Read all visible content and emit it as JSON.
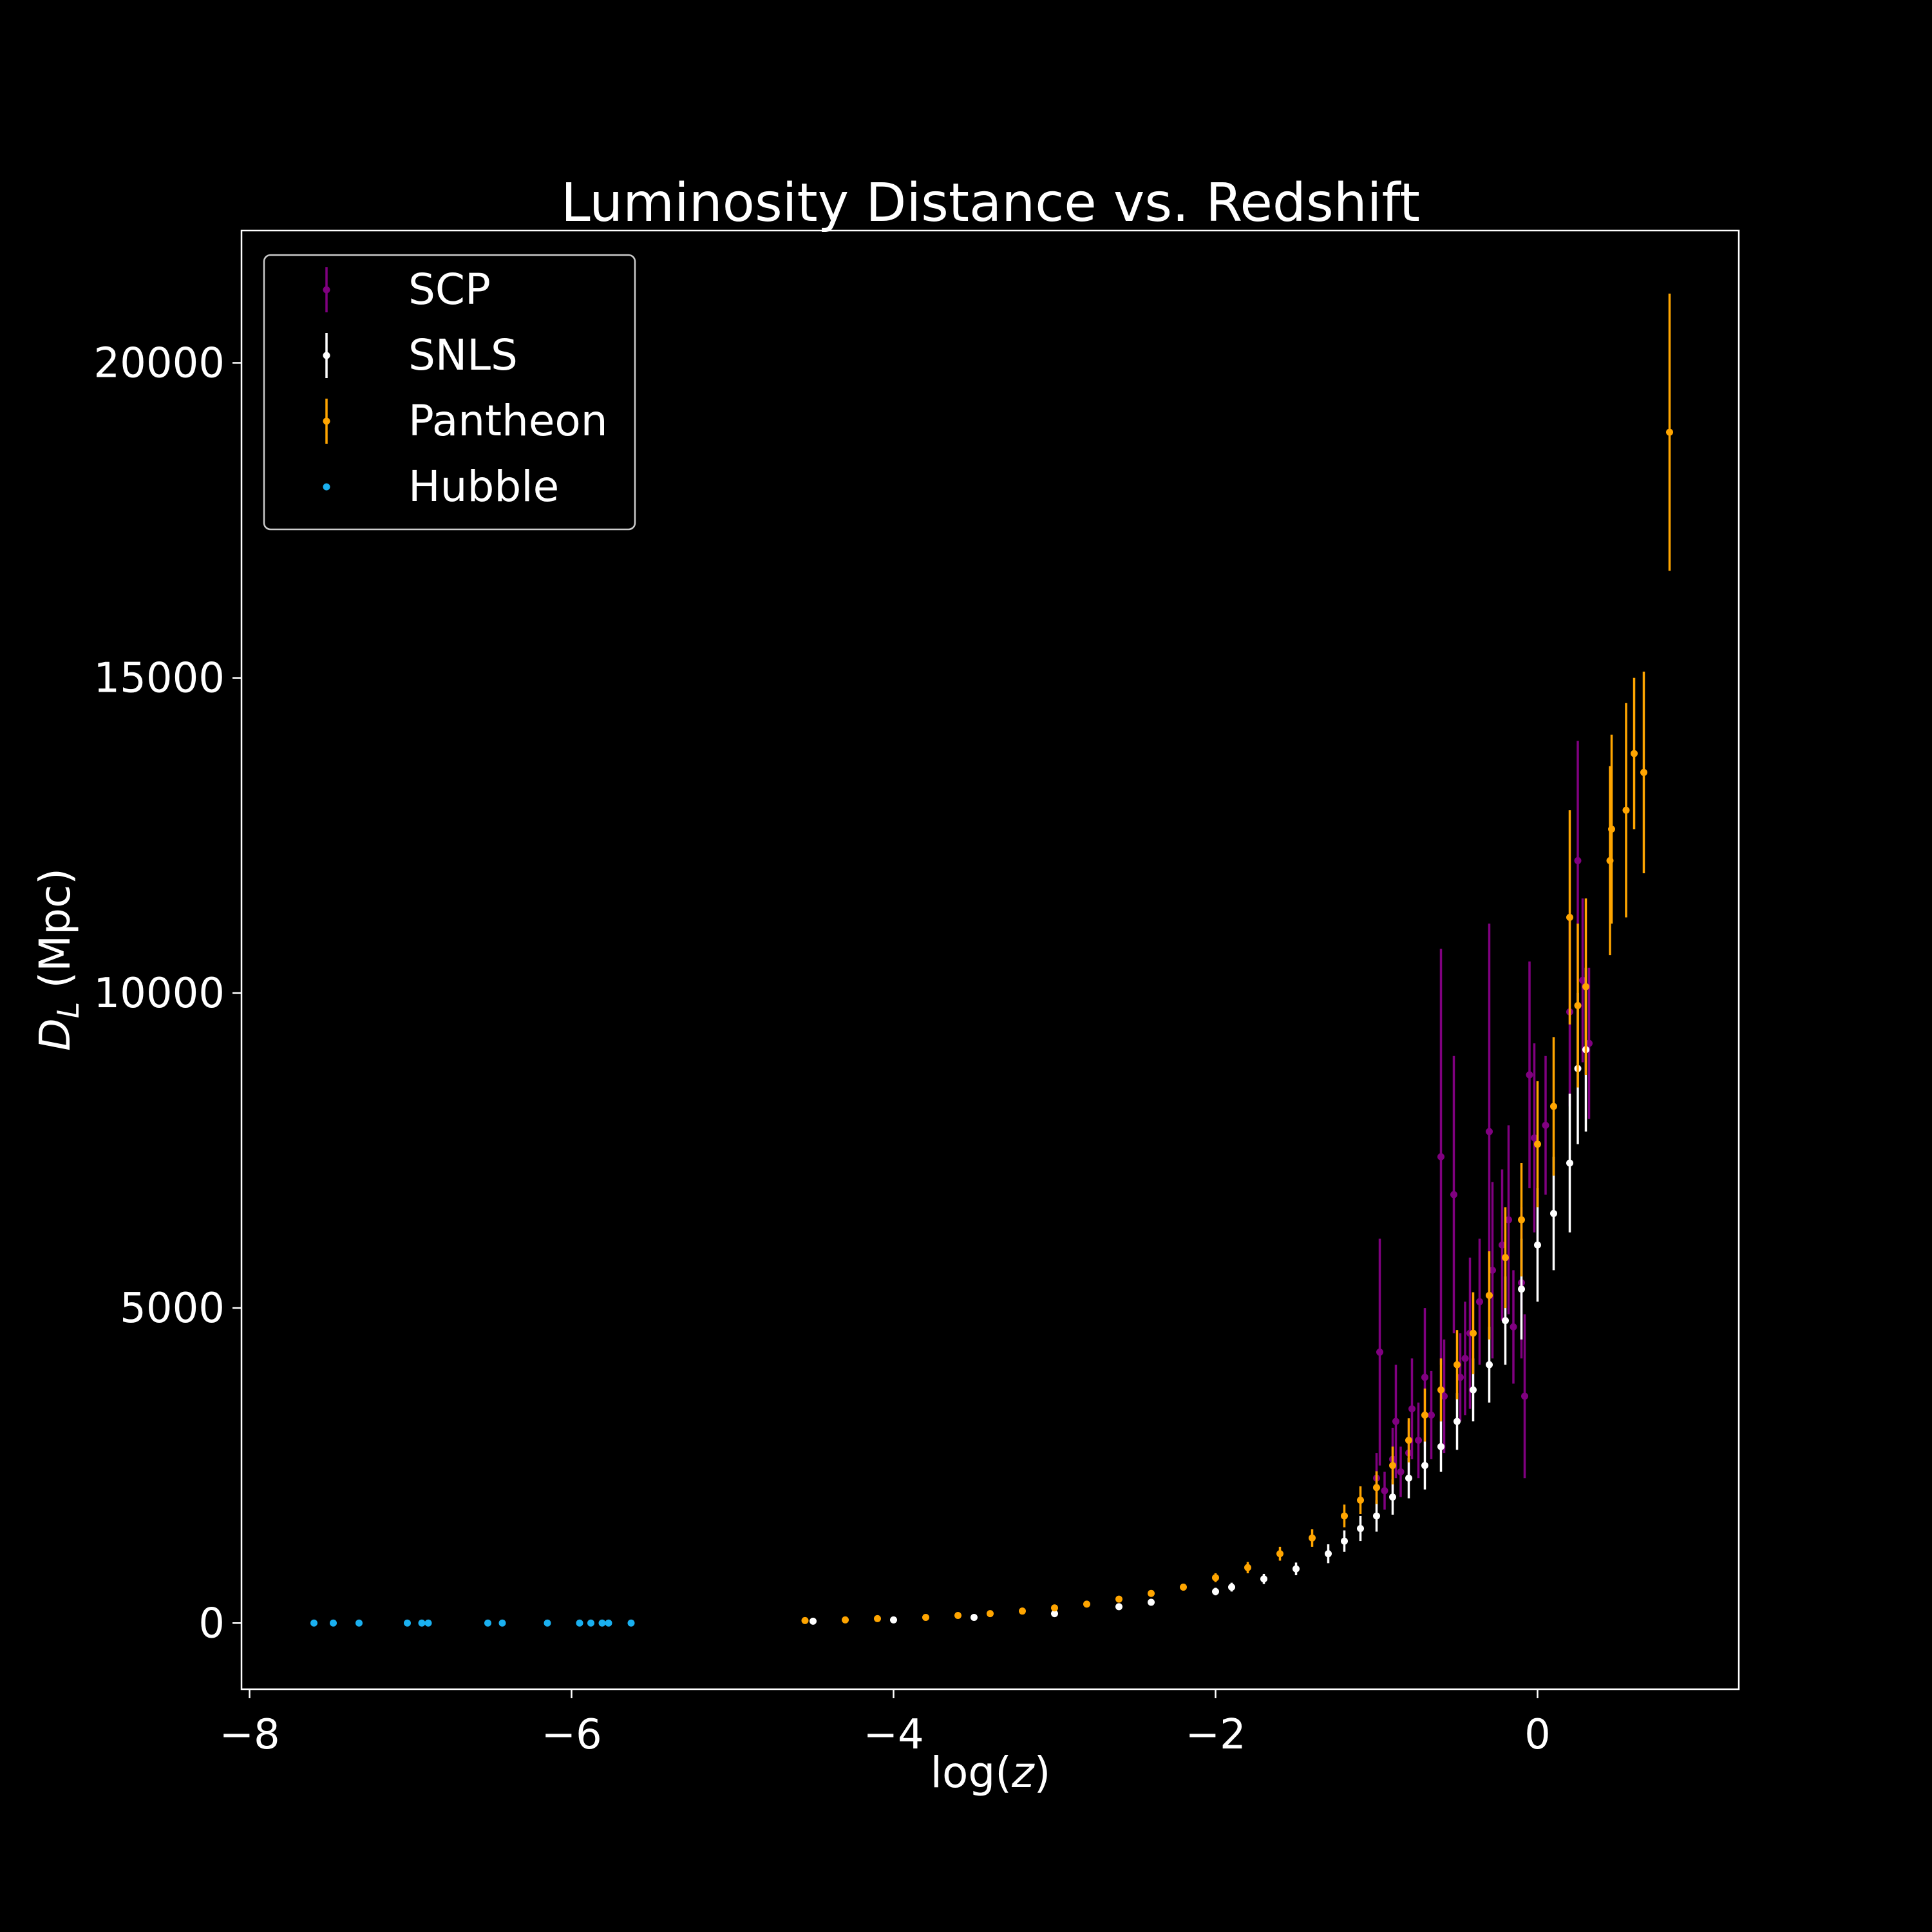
{
  "chart_data": {
    "type": "scatter",
    "title": "Luminosity Distance vs. Redshift",
    "xlabel_text": "log(",
    "xlabel_var": "z",
    "xlabel_close": ")",
    "ylabel_var": "D",
    "ylabel_sub": "L",
    "ylabel_unit": " (Mpc)",
    "xlim": [
      -8.05,
      1.25
    ],
    "ylim": [
      -1050,
      22100
    ],
    "x_ticks": [
      -8,
      -6,
      -4,
      -2,
      0
    ],
    "x_tick_labels": [
      "−8",
      "−6",
      "−4",
      "−2",
      "0"
    ],
    "y_ticks": [
      0,
      5000,
      10000,
      15000,
      20000
    ],
    "y_tick_labels": [
      "0",
      "5000",
      "10000",
      "15000",
      "20000"
    ],
    "grid": false,
    "legend_position": "top-left",
    "background": "#000000",
    "series": [
      {
        "name": "SCP",
        "color": "#800080",
        "marker": "errorbar",
        "points": [
          [
            -1.0,
            2300,
            400
          ],
          [
            -0.98,
            4300,
            1800
          ],
          [
            -0.95,
            2100,
            300
          ],
          [
            -0.9,
            2600,
            500
          ],
          [
            -0.88,
            3200,
            900
          ],
          [
            -0.85,
            2400,
            400
          ],
          [
            -0.8,
            2700,
            500
          ],
          [
            -0.78,
            3400,
            800
          ],
          [
            -0.74,
            2900,
            600
          ],
          [
            -0.7,
            3900,
            1100
          ],
          [
            -0.66,
            3300,
            700
          ],
          [
            -0.6,
            7400,
            3300
          ],
          [
            -0.58,
            3600,
            900
          ],
          [
            -0.52,
            6800,
            2200
          ],
          [
            -0.48,
            3900,
            700
          ],
          [
            -0.45,
            4200,
            900
          ],
          [
            -0.42,
            4600,
            1200
          ],
          [
            -0.36,
            5100,
            1000
          ],
          [
            -0.3,
            7800,
            3300
          ],
          [
            -0.28,
            5600,
            1400
          ],
          [
            -0.22,
            6000,
            1200
          ],
          [
            -0.18,
            6400,
            1500
          ],
          [
            -0.1,
            5400,
            1200
          ],
          [
            -0.08,
            3600,
            1300
          ],
          [
            -0.05,
            8700,
            1800
          ],
          [
            -0.02,
            7700,
            1500
          ],
          [
            0.05,
            7900,
            1100
          ],
          [
            0.2,
            9700,
            1500
          ],
          [
            0.25,
            12100,
            1900
          ],
          [
            0.28,
            10200,
            1300
          ],
          [
            0.32,
            9200,
            1200
          ],
          [
            -0.15,
            4700,
            900
          ]
        ]
      },
      {
        "name": "SNLS",
        "color": "#ffffff",
        "marker": "errorbar",
        "points": [
          [
            -4.5,
            30,
            8
          ],
          [
            -4.0,
            50,
            10
          ],
          [
            -3.5,
            90,
            15
          ],
          [
            -3.0,
            150,
            20
          ],
          [
            -2.6,
            260,
            30
          ],
          [
            -2.4,
            330,
            40
          ],
          [
            -2.0,
            500,
            60
          ],
          [
            -1.9,
            570,
            70
          ],
          [
            -1.7,
            700,
            80
          ],
          [
            -1.5,
            860,
            100
          ],
          [
            -1.3,
            1100,
            150
          ],
          [
            -1.2,
            1300,
            170
          ],
          [
            -1.1,
            1500,
            200
          ],
          [
            -1.0,
            1700,
            250
          ],
          [
            -0.9,
            2000,
            280
          ],
          [
            -0.8,
            2300,
            320
          ],
          [
            -0.7,
            2500,
            380
          ],
          [
            -0.6,
            2800,
            400
          ],
          [
            -0.5,
            3200,
            450
          ],
          [
            -0.4,
            3700,
            500
          ],
          [
            -0.3,
            4100,
            600
          ],
          [
            -0.2,
            4800,
            700
          ],
          [
            -0.1,
            5300,
            800
          ],
          [
            0.0,
            6000,
            900
          ],
          [
            0.1,
            6500,
            900
          ],
          [
            0.2,
            7300,
            1100
          ],
          [
            0.25,
            8800,
            1200
          ],
          [
            0.3,
            9100,
            1300
          ]
        ]
      },
      {
        "name": "Pantheon",
        "color": "#ffa500",
        "marker": "errorbar",
        "points": [
          [
            -4.55,
            40,
            10
          ],
          [
            -4.3,
            50,
            10
          ],
          [
            -4.1,
            70,
            12
          ],
          [
            -3.8,
            90,
            12
          ],
          [
            -3.6,
            120,
            15
          ],
          [
            -3.4,
            150,
            18
          ],
          [
            -3.2,
            190,
            20
          ],
          [
            -3.0,
            240,
            25
          ],
          [
            -2.8,
            300,
            30
          ],
          [
            -2.6,
            380,
            35
          ],
          [
            -2.4,
            470,
            45
          ],
          [
            -2.2,
            570,
            55
          ],
          [
            -2.0,
            720,
            70
          ],
          [
            -1.8,
            880,
            90
          ],
          [
            -1.6,
            1100,
            110
          ],
          [
            -1.4,
            1350,
            140
          ],
          [
            -1.2,
            1700,
            180
          ],
          [
            -1.1,
            1950,
            220
          ],
          [
            -1.0,
            2150,
            260
          ],
          [
            -0.9,
            2500,
            300
          ],
          [
            -0.8,
            2900,
            350
          ],
          [
            -0.7,
            3300,
            420
          ],
          [
            -0.6,
            3700,
            500
          ],
          [
            -0.5,
            4100,
            550
          ],
          [
            -0.4,
            4600,
            650
          ],
          [
            -0.3,
            5200,
            700
          ],
          [
            -0.2,
            5800,
            800
          ],
          [
            -0.1,
            6400,
            900
          ],
          [
            0.0,
            7600,
            1000
          ],
          [
            0.1,
            8200,
            1100
          ],
          [
            0.2,
            11200,
            1700
          ],
          [
            0.25,
            9800,
            1300
          ],
          [
            0.3,
            10100,
            1400
          ],
          [
            0.45,
            12100,
            1500
          ],
          [
            0.46,
            12600,
            1500
          ],
          [
            0.55,
            12900,
            1700
          ],
          [
            0.6,
            13800,
            1200
          ],
          [
            0.66,
            13500,
            1600
          ],
          [
            0.82,
            18900,
            2200
          ]
        ]
      },
      {
        "name": "Hubble",
        "color": "#1ab0f0",
        "marker": "dot",
        "points": [
          [
            -7.6,
            0
          ],
          [
            -7.48,
            0
          ],
          [
            -7.32,
            0
          ],
          [
            -7.02,
            0
          ],
          [
            -6.93,
            0
          ],
          [
            -6.89,
            0
          ],
          [
            -6.52,
            0
          ],
          [
            -6.43,
            0
          ],
          [
            -6.15,
            0
          ],
          [
            -5.95,
            0
          ],
          [
            -5.88,
            0
          ],
          [
            -5.81,
            0
          ],
          [
            -5.77,
            0
          ],
          [
            -5.63,
            0
          ]
        ]
      }
    ]
  }
}
